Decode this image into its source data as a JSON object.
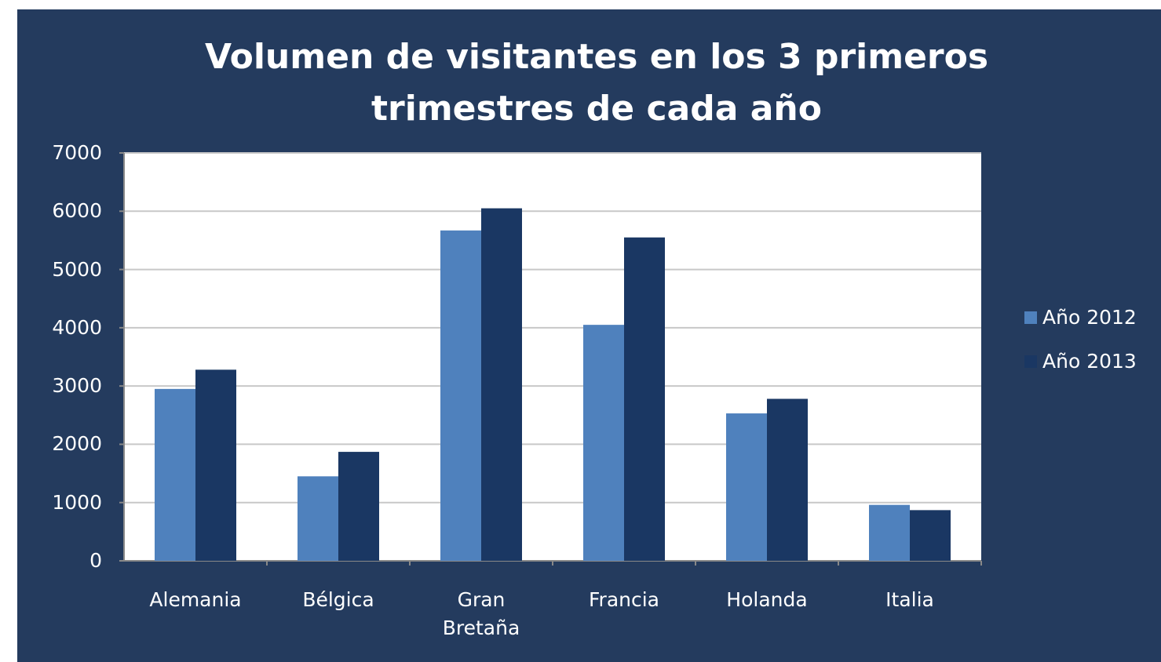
{
  "chart_data": {
    "type": "bar",
    "title": "Volumen de visitantes en los 3 primeros trimestres de cada año",
    "categories": [
      "Alemania",
      "Bélgica",
      "Gran Bretaña",
      "Francia",
      "Holanda",
      "Italia"
    ],
    "series": [
      {
        "name": "Año 2012",
        "color": "#4f81bd",
        "values": [
          2950,
          1450,
          5670,
          4050,
          2530,
          960
        ]
      },
      {
        "name": "Año 2013",
        "color": "#1a3763",
        "values": [
          3280,
          1870,
          6050,
          5550,
          2780,
          870
        ]
      }
    ],
    "ylim": [
      0,
      7000
    ],
    "yticks": [
      0,
      1000,
      2000,
      3000,
      4000,
      5000,
      6000,
      7000
    ],
    "grid": true,
    "legend": "right"
  }
}
